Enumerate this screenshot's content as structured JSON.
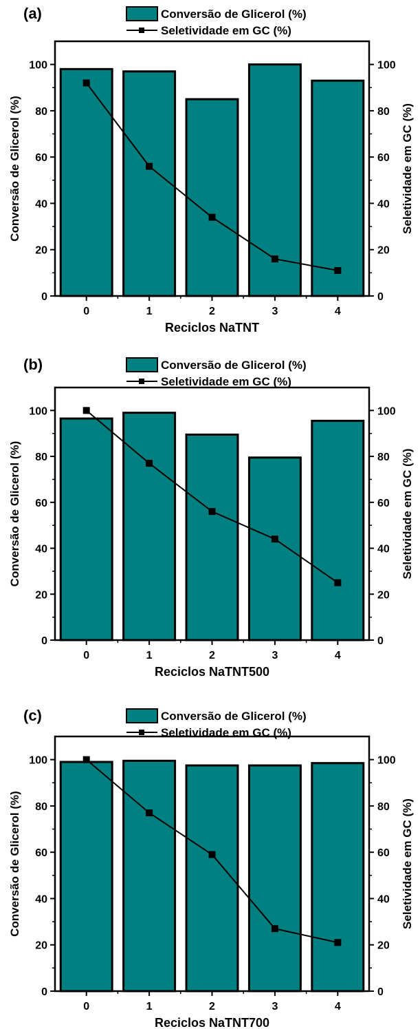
{
  "chart_data": [
    {
      "type": "bar",
      "panel_label": "(a)",
      "legend": {
        "bars": "Conversão de Glicerol (%)",
        "line": "Seletividade em GC (%)"
      },
      "xlabel": "Reciclos NaTNT",
      "ylabel_left": "Conversão de Glicerol (%)",
      "ylabel_right": "Seletividade em GC (%)",
      "categories": [
        "0",
        "1",
        "2",
        "3",
        "4"
      ],
      "ylim": [
        0,
        110
      ],
      "y_ticks": [
        "0",
        "20",
        "40",
        "60",
        "80",
        "100"
      ],
      "series": [
        {
          "name": "Conversão de Glicerol (%)",
          "type": "bar",
          "values": [
            98,
            97,
            85,
            100,
            93
          ]
        },
        {
          "name": "Seletividade em GC (%)",
          "type": "line",
          "axis": "right",
          "values": [
            92,
            56,
            34,
            16,
            11
          ]
        }
      ]
    },
    {
      "type": "bar",
      "panel_label": "(b)",
      "legend": {
        "bars": "Conversão de Glicerol (%)",
        "line": "Seletividade em GC (%)"
      },
      "xlabel": "Reciclos NaTNT500",
      "ylabel_left": "Conversão de Glicerol (%)",
      "ylabel_right": "Seletividade em GC (%)",
      "categories": [
        "0",
        "1",
        "2",
        "3",
        "4"
      ],
      "ylim": [
        0,
        110
      ],
      "y_ticks": [
        "0",
        "20",
        "40",
        "60",
        "80",
        "100"
      ],
      "series": [
        {
          "name": "Conversão de Glicerol (%)",
          "type": "bar",
          "values": [
            96.5,
            99,
            89.5,
            79.5,
            95.5
          ]
        },
        {
          "name": "Seletividade em GC (%)",
          "type": "line",
          "axis": "right",
          "values": [
            100,
            77,
            56,
            44,
            25
          ]
        }
      ]
    },
    {
      "type": "bar",
      "panel_label": "(c)",
      "legend": {
        "bars": "Conversão de Glicerol (%)",
        "line": "Seletividade em GC (%)"
      },
      "xlabel": "Reciclos NaTNT700",
      "ylabel_left": "Conversão de Glicerol (%)",
      "ylabel_right": "Seletividade em GC (%)",
      "categories": [
        "0",
        "1",
        "2",
        "3",
        "4"
      ],
      "ylim": [
        0,
        110
      ],
      "y_ticks": [
        "0",
        "20",
        "40",
        "60",
        "80",
        "100"
      ],
      "series": [
        {
          "name": "Conversão de Glicerol (%)",
          "type": "bar",
          "values": [
            99,
            99.5,
            97.5,
            97.5,
            98.5
          ]
        },
        {
          "name": "Seletividade em GC (%)",
          "type": "line",
          "axis": "right",
          "values": [
            100,
            77,
            59,
            27,
            21
          ]
        }
      ]
    }
  ],
  "colors": {
    "bar_fill": "#008080",
    "line": "#000000",
    "axis": "#000000"
  }
}
